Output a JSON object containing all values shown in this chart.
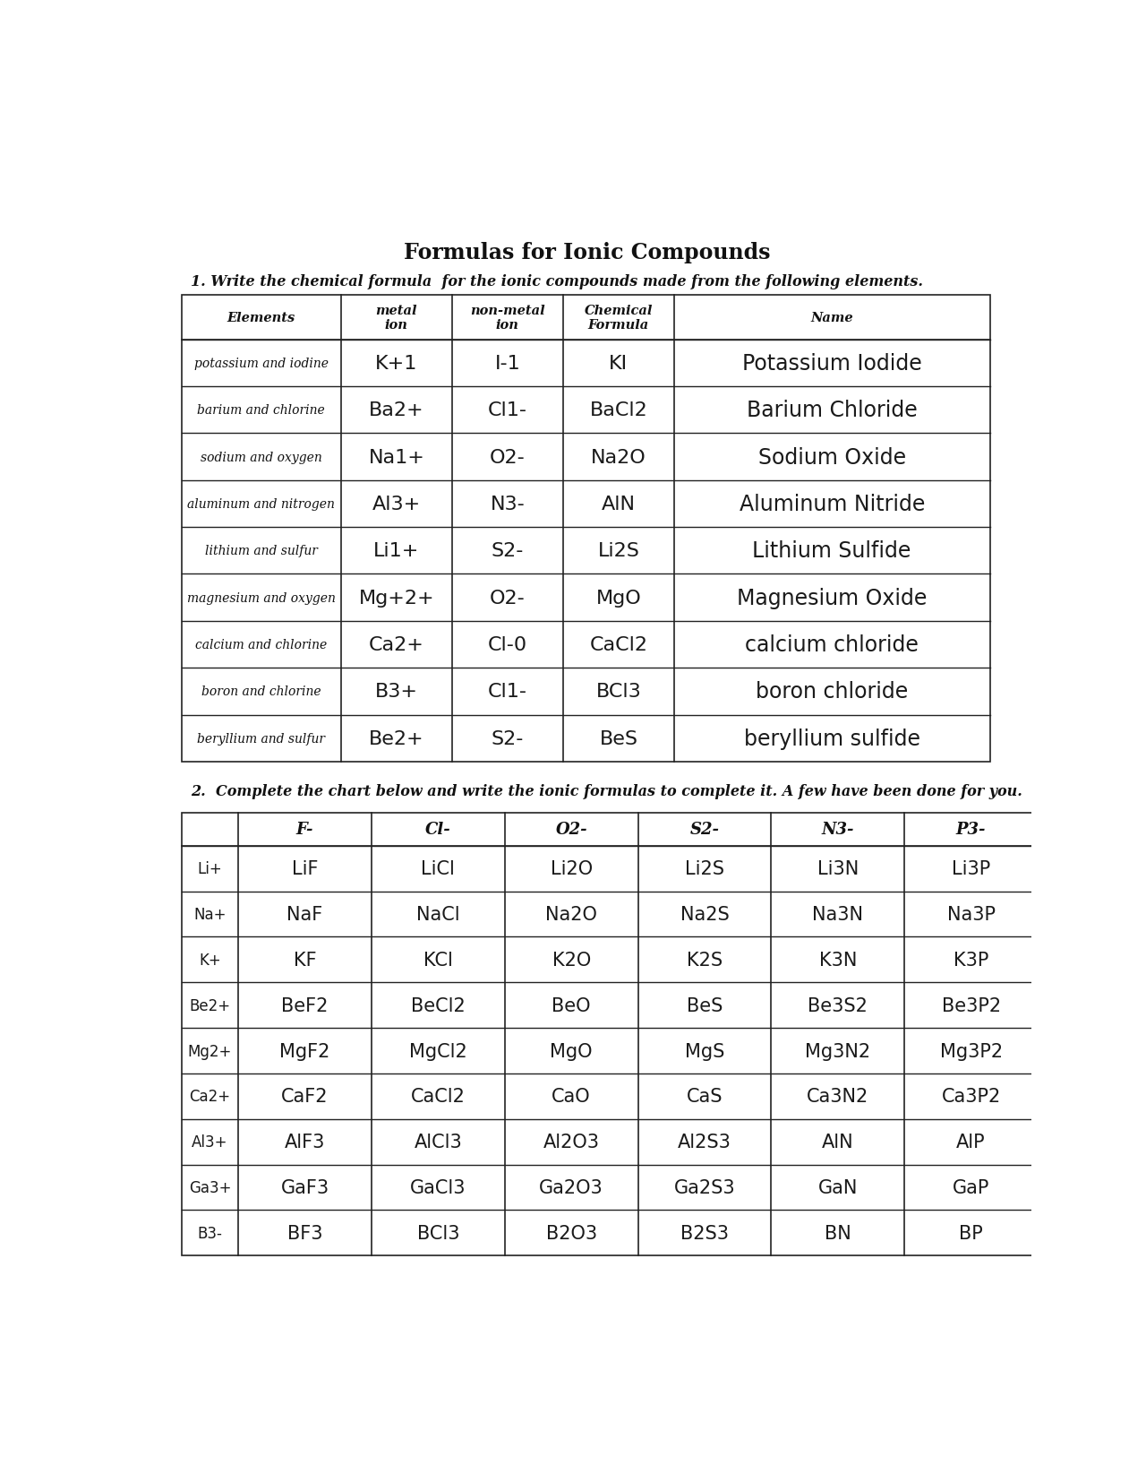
{
  "title": "Formulas for Ionic Compounds",
  "question1": "1. Write the chemical formula  for the ionic compounds made from the following elements.",
  "question2": "2.  Complete the chart below and write the ionic formulas to complete it. A few have been done for you.",
  "table1_header_texts": [
    "Elements",
    "metal\nion",
    "non-metal\nion",
    "Chemical\nFormula",
    "Name"
  ],
  "table1_rows": [
    [
      "potassium and iodine",
      "K+1",
      "I-1",
      "KI",
      "Potassium Iodide"
    ],
    [
      "barium and chlorine",
      "Ba2+",
      "Cl1-",
      "BaCl2",
      "Barium Chloride"
    ],
    [
      "sodium and oxygen",
      "Na1+",
      "O2-",
      "Na2O",
      "Sodium Oxide"
    ],
    [
      "aluminum and nitrogen",
      "Al3+",
      "N3-",
      "AlN",
      "Aluminum Nitride"
    ],
    [
      "lithium and sulfur",
      "Li1+",
      "S2-",
      "Li2S",
      "Lithium Sulfide"
    ],
    [
      "magnesium and oxygen",
      "Mg+2+",
      "O2-",
      "MgO",
      "Magnesium Oxide"
    ],
    [
      "calcium and chlorine",
      "Ca2+",
      "Cl-0",
      "CaCl2",
      "calcium chloride"
    ],
    [
      "boron and chlorine",
      "B3+",
      "Cl1-",
      "BCl3",
      "boron chloride"
    ],
    [
      "beryllium and sulfur",
      "Be2+",
      "S2-",
      "BeS",
      "beryllium sulfide"
    ]
  ],
  "table2_col_headers": [
    "",
    "F-",
    "Cl-",
    "O2-",
    "S2-",
    "N3-",
    "P3-"
  ],
  "table2_row_headers": [
    "Li+",
    "Na+",
    "K+",
    "Be2+",
    "Mg2+",
    "Ca2+",
    "Al3+",
    "Ga3+",
    "B3-"
  ],
  "table2_cells": [
    [
      "LiF",
      "LiCl",
      "Li2O",
      "Li2S",
      "Li3N",
      "Li3P"
    ],
    [
      "NaF",
      "NaCl",
      "Na2O",
      "Na2S",
      "Na3N",
      "Na3P"
    ],
    [
      "KF",
      "KCl",
      "K2O",
      "K2S",
      "K3N",
      "K3P"
    ],
    [
      "BeF2",
      "BeCl2",
      "BeO",
      "BeS",
      "Be3S2",
      "Be3P2"
    ],
    [
      "MgF2",
      "MgCl2",
      "MgO",
      "MgS",
      "Mg3N2",
      "Mg3P2"
    ],
    [
      "CaF2",
      "CaCl2",
      "CaO",
      "CaS",
      "Ca3N2",
      "Ca3P2"
    ],
    [
      "AlF3",
      "AlCl3",
      "Al2O3",
      "Al2S3",
      "AlN",
      "AlP"
    ],
    [
      "GaF3",
      "GaCl3",
      "Ga2O3",
      "Ga2S3",
      "GaN",
      "GaP"
    ],
    [
      "BF3",
      "BCl3",
      "B2O3",
      "B2S3",
      "BN",
      "BP"
    ]
  ],
  "bg_color": "#ffffff",
  "line_color": "#222222",
  "text_color": "#111111",
  "handwritten_color": "#1a1a1a"
}
